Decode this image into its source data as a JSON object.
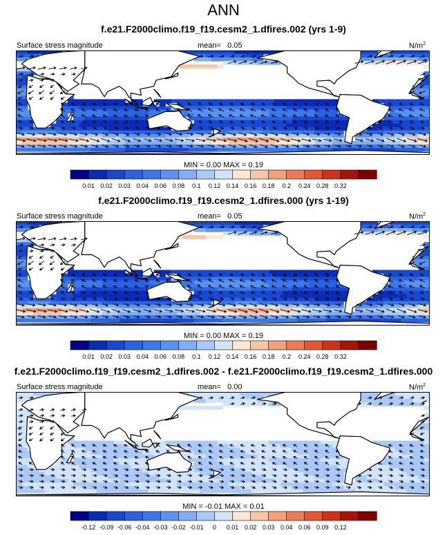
{
  "main_title": "ANN",
  "colors": {
    "seq": [
      "#00008b",
      "#0a2bb3",
      "#1848d0",
      "#2a62e2",
      "#3c78ea",
      "#5b92f0",
      "#82aef4",
      "#aac8f8",
      "#d2e4fb",
      "#fde6d2",
      "#f9c5a5",
      "#f4a07c",
      "#ee7b58",
      "#e55636",
      "#cf3218",
      "#a61408",
      "#7d0000"
    ],
    "diff": [
      "#00008b",
      "#0a2bb3",
      "#1848d0",
      "#2a62e2",
      "#3c78ea",
      "#5b92f0",
      "#82aef4",
      "#aac8f8",
      "#d2e4fb",
      "#fde6d2",
      "#f9c5a5",
      "#f4a07c",
      "#ee7b58",
      "#e55636",
      "#cf3218",
      "#a61408",
      "#7d0000"
    ]
  },
  "chart_data": [
    {
      "type": "heatmap",
      "title": "f.e21.F2000climo.f19_f19.cesm2_1.dfires.002 (yrs 1-9)",
      "variable": "Surface stress magnitude",
      "mean_label": "mean=",
      "mean_value": "0.05",
      "units": "N/m",
      "units_exp": "2",
      "min_max_text": "MIN =  0.00 MAX =  0.19",
      "colorbar_ticks": [
        "0.01",
        "0.02",
        "0.03",
        "0.04",
        "0.06",
        "0.08",
        "0.1",
        "0.12",
        "0.14",
        "0.16",
        "0.18",
        "0.2",
        "0.24",
        "0.28",
        "0.32"
      ],
      "field": "abs",
      "overlay": "wind stress vectors"
    },
    {
      "type": "heatmap",
      "title": "f.e21.F2000climo.f19_f19.cesm2_1.dfires.000 (yrs 1-19)",
      "variable": "Surface stress magnitude",
      "mean_label": "mean=",
      "mean_value": "0.05",
      "units": "N/m",
      "units_exp": "2",
      "min_max_text": "MIN =  0.00 MAX =  0.19",
      "colorbar_ticks": [
        "0.01",
        "0.02",
        "0.03",
        "0.04",
        "0.06",
        "0.08",
        "0.1",
        "0.12",
        "0.14",
        "0.16",
        "0.18",
        "0.2",
        "0.24",
        "0.28",
        "0.32"
      ],
      "field": "abs",
      "overlay": "wind stress vectors"
    },
    {
      "type": "heatmap",
      "title": "f.e21.F2000climo.f19_f19.cesm2_1.dfires.002 - f.e21.F2000climo.f19_f19.cesm2_1.dfires.000",
      "variable": "Surface stress magnitude",
      "mean_label": "mean=",
      "mean_value": "0.00",
      "units": "N/m",
      "units_exp": "2",
      "min_max_text": "MIN = -0.01 MAX =  0.01",
      "colorbar_ticks": [
        "-0.12",
        "-0.09",
        "-0.06",
        "-0.04",
        "-0.03",
        "-0.02",
        "-0.01",
        "0",
        "0.01",
        "0.02",
        "0.03",
        "0.04",
        "0.06",
        "0.09",
        "0.12"
      ],
      "field": "diff",
      "overlay": "wind stress difference vectors"
    }
  ]
}
